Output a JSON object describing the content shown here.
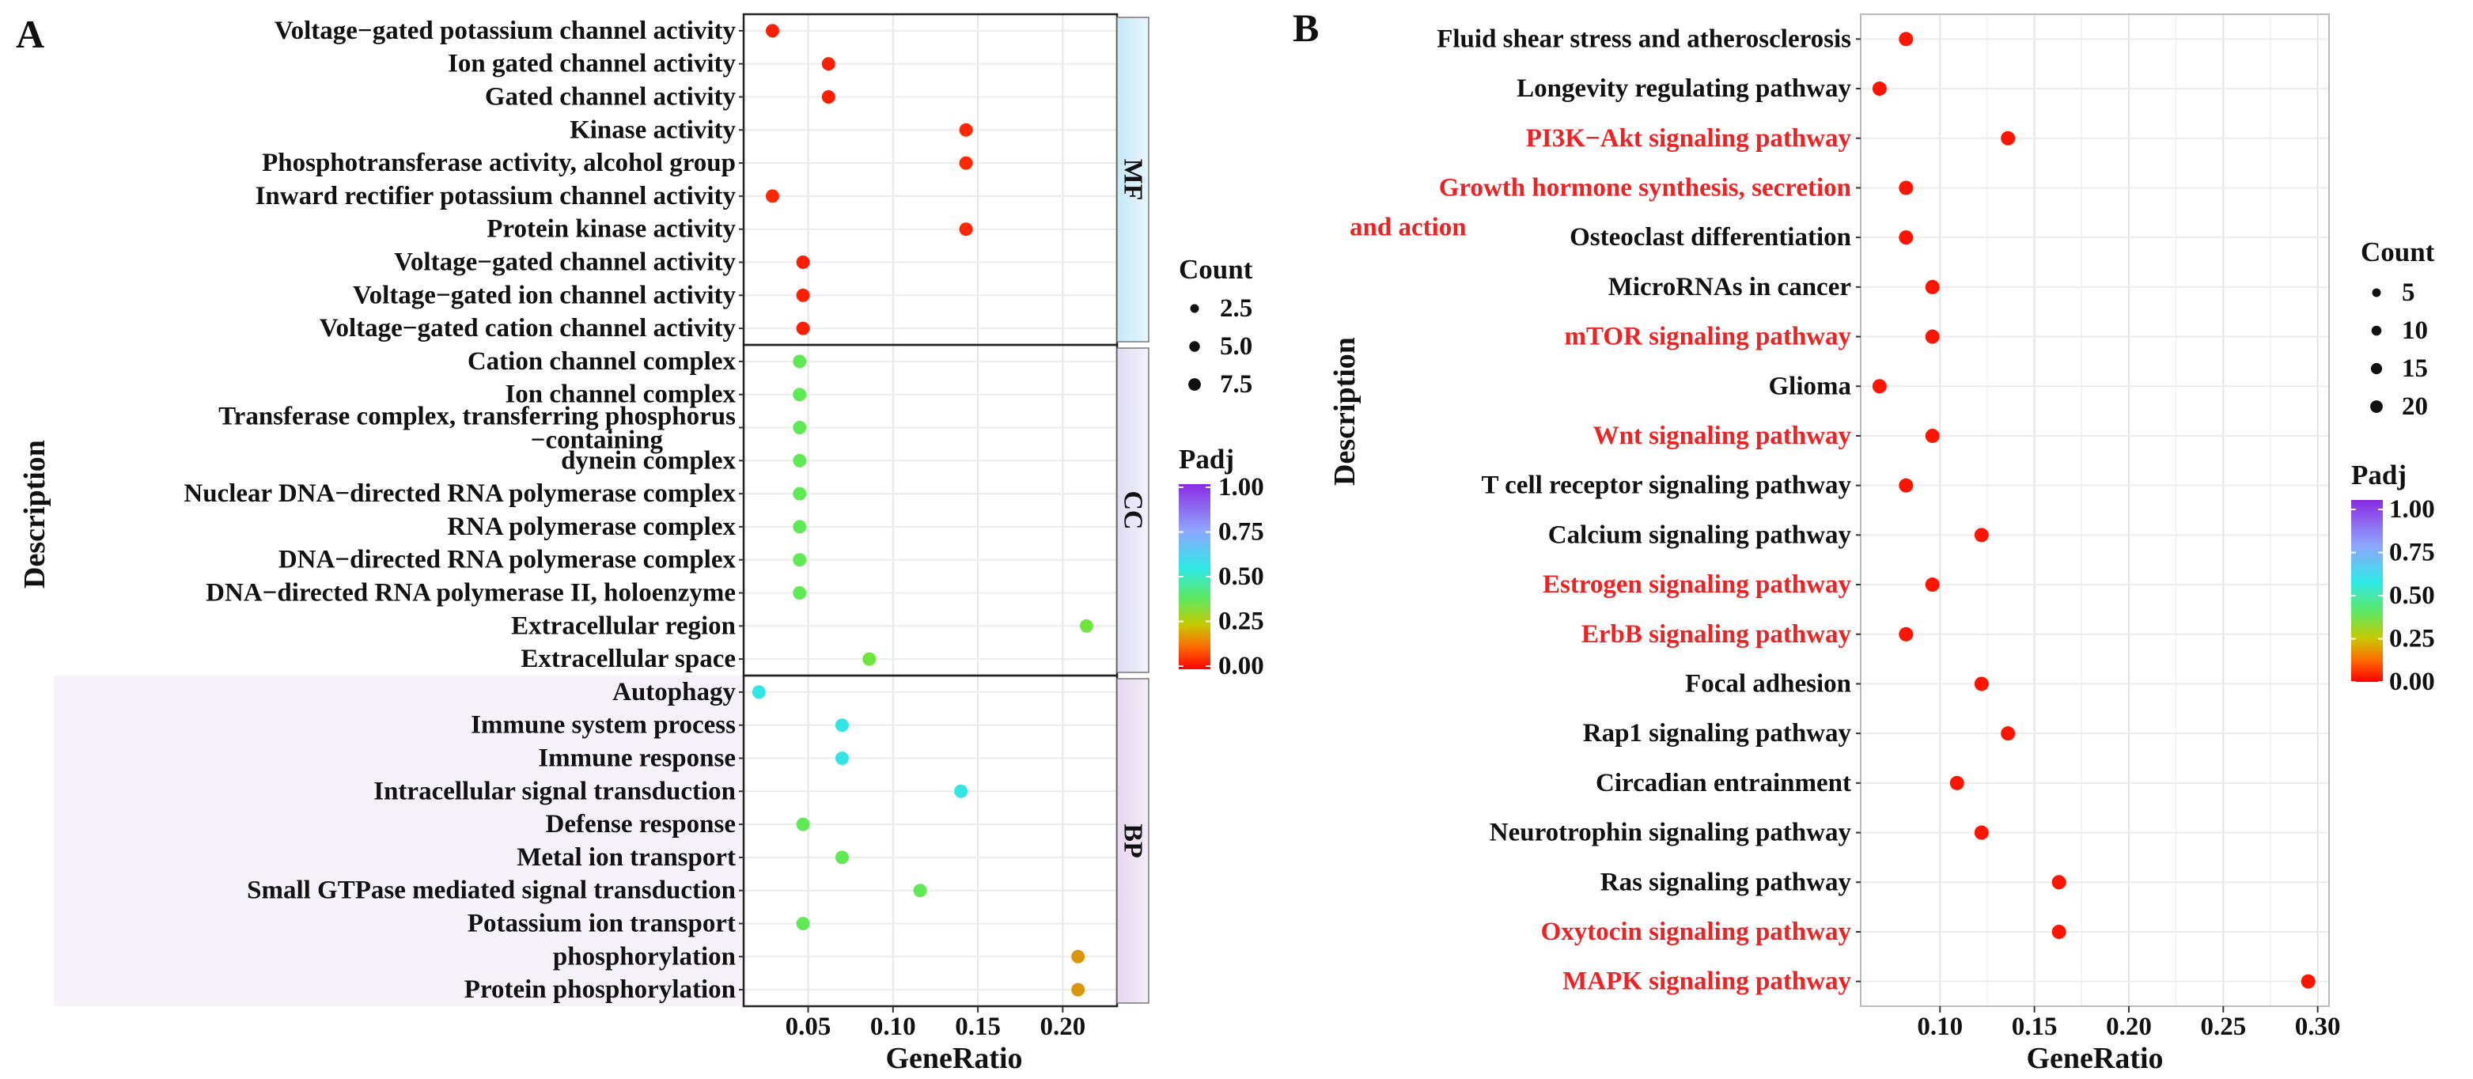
{
  "chart_data": [
    {
      "panel_label": "A",
      "type": "scatter",
      "xlabel": "GeneRatio",
      "ylabel": "Description",
      "xlim": [
        0.012,
        0.232
      ],
      "x_ticks": [
        0.05,
        0.1,
        0.15,
        0.2
      ],
      "x_tick_labels": [
        "0.05",
        "0.10",
        "0.15",
        "0.20"
      ],
      "grid": true,
      "legend_position": "right",
      "size_legend": {
        "title": "Count",
        "values": [
          2.5,
          5.0,
          7.5
        ],
        "labels": [
          "2.5",
          "5.0",
          "7.5"
        ]
      },
      "color_legend": {
        "title": "Padj",
        "range": [
          0,
          1
        ],
        "labels": [
          "1.00",
          "0.75",
          "0.50",
          "0.25",
          "0.00"
        ]
      },
      "facets": [
        {
          "label": "MF",
          "start": 0,
          "count": 10
        },
        {
          "label": "CC",
          "start": 10,
          "count": 10
        },
        {
          "label": "BP",
          "start": 20,
          "count": 10
        }
      ],
      "points": [
        {
          "label": "Voltage−gated potassium channel activity",
          "x": 0.029,
          "padj": 0.03
        },
        {
          "label": "Ion gated channel activity",
          "x": 0.062,
          "padj": 0.03
        },
        {
          "label": "Gated channel activity",
          "x": 0.062,
          "padj": 0.03
        },
        {
          "label": "Kinase activity",
          "x": 0.143,
          "padj": 0.04
        },
        {
          "label": "Phosphotransferase activity, alcohol group",
          "x": 0.143,
          "padj": 0.04
        },
        {
          "label": "Inward rectifier potassium channel activity",
          "x": 0.029,
          "padj": 0.04
        },
        {
          "label": "Protein kinase activity",
          "x": 0.143,
          "padj": 0.04
        },
        {
          "label": "Voltage−gated channel activity",
          "x": 0.047,
          "padj": 0.03
        },
        {
          "label": "Voltage−gated ion channel activity",
          "x": 0.047,
          "padj": 0.03
        },
        {
          "label": "Voltage−gated cation channel activity",
          "x": 0.047,
          "padj": 0.03
        },
        {
          "label": "Cation channel complex",
          "x": 0.045,
          "padj": 0.4
        },
        {
          "label": "Ion channel complex",
          "x": 0.045,
          "padj": 0.4
        },
        {
          "label": "Transferase complex, transferring phosphorus−containing",
          "x": 0.045,
          "padj": 0.4
        },
        {
          "label": "dynein complex",
          "x": 0.045,
          "padj": 0.4
        },
        {
          "label": "Nuclear DNA−directed RNA polymerase complex",
          "x": 0.045,
          "padj": 0.4
        },
        {
          "label": "RNA polymerase complex",
          "x": 0.045,
          "padj": 0.4
        },
        {
          "label": "DNA−directed RNA polymerase complex",
          "x": 0.045,
          "padj": 0.4
        },
        {
          "label": "DNA−directed RNA polymerase II, holoenzyme",
          "x": 0.045,
          "padj": 0.4
        },
        {
          "label": "Extracellular region",
          "x": 0.214,
          "padj": 0.35
        },
        {
          "label": "Extracellular space",
          "x": 0.086,
          "padj": 0.35
        },
        {
          "label": "Autophagy",
          "x": 0.021,
          "padj": 0.55
        },
        {
          "label": "Immune system process",
          "x": 0.07,
          "padj": 0.55
        },
        {
          "label": "Immune response",
          "x": 0.07,
          "padj": 0.55
        },
        {
          "label": "Intracellular signal transduction",
          "x": 0.14,
          "padj": 0.55
        },
        {
          "label": "Defense response",
          "x": 0.047,
          "padj": 0.4
        },
        {
          "label": "Metal ion transport",
          "x": 0.07,
          "padj": 0.4
        },
        {
          "label": "Small GTPase mediated signal transduction",
          "x": 0.116,
          "padj": 0.4
        },
        {
          "label": "Potassium ion transport",
          "x": 0.047,
          "padj": 0.4
        },
        {
          "label": "phosphorylation",
          "x": 0.209,
          "padj": 0.18
        },
        {
          "label": "Protein phosphorylation",
          "x": 0.209,
          "padj": 0.18
        }
      ]
    },
    {
      "panel_label": "B",
      "type": "scatter",
      "xlabel": "GeneRatio",
      "ylabel": "Description",
      "xlim": [
        0.058,
        0.306
      ],
      "x_ticks": [
        0.1,
        0.15,
        0.2,
        0.25,
        0.3
      ],
      "x_tick_labels": [
        "0.10",
        "0.15",
        "0.20",
        "0.25",
        "0.30"
      ],
      "grid": true,
      "legend_position": "right",
      "size_legend": {
        "title": "Count",
        "values": [
          5,
          10,
          15,
          20
        ],
        "labels": [
          "5",
          "10",
          "15",
          "20"
        ]
      },
      "color_legend": {
        "title": "Padj",
        "range": [
          0,
          1
        ],
        "labels": [
          "1.00",
          "0.75",
          "0.50",
          "0.25",
          "0.00"
        ]
      },
      "highlight_color": "#ee2222",
      "points": [
        {
          "label": "Fluid shear stress and atherosclerosis",
          "x": 0.082,
          "padj": 0.02,
          "highlight": false
        },
        {
          "label": "Longevity regulating pathway",
          "x": 0.068,
          "padj": 0.02,
          "highlight": false
        },
        {
          "label": "PI3K−Akt signaling pathway",
          "x": 0.136,
          "padj": 0.02,
          "highlight": true
        },
        {
          "label": "Growth hormone synthesis, secretion",
          "label2": "and action",
          "x": 0.082,
          "padj": 0.02,
          "highlight": true
        },
        {
          "label": "Osteoclast differentiation",
          "x": 0.082,
          "padj": 0.02,
          "highlight": false
        },
        {
          "label": "MicroRNAs in cancer",
          "x": 0.096,
          "padj": 0.02,
          "highlight": false
        },
        {
          "label": "mTOR signaling pathway",
          "x": 0.096,
          "padj": 0.02,
          "highlight": true
        },
        {
          "label": "Glioma",
          "x": 0.068,
          "padj": 0.02,
          "highlight": false
        },
        {
          "label": "Wnt signaling pathway",
          "x": 0.096,
          "padj": 0.02,
          "highlight": true
        },
        {
          "label": "T cell receptor signaling pathway",
          "x": 0.082,
          "padj": 0.02,
          "highlight": false
        },
        {
          "label": "Calcium signaling pathway",
          "x": 0.122,
          "padj": 0.02,
          "highlight": false
        },
        {
          "label": "Estrogen signaling pathway",
          "x": 0.096,
          "padj": 0.02,
          "highlight": true
        },
        {
          "label": "ErbB signaling pathway",
          "x": 0.082,
          "padj": 0.02,
          "highlight": true
        },
        {
          "label": "Focal adhesion",
          "x": 0.122,
          "padj": 0.02,
          "highlight": false
        },
        {
          "label": "Rap1 signaling pathway",
          "x": 0.136,
          "padj": 0.02,
          "highlight": false
        },
        {
          "label": "Circadian entrainment",
          "x": 0.109,
          "padj": 0.02,
          "highlight": false
        },
        {
          "label": "Neurotrophin signaling pathway",
          "x": 0.122,
          "padj": 0.02,
          "highlight": false
        },
        {
          "label": "Ras signaling pathway",
          "x": 0.163,
          "padj": 0.02,
          "highlight": false
        },
        {
          "label": "Oxytocin signaling pathway",
          "x": 0.163,
          "padj": 0.02,
          "highlight": true
        },
        {
          "label": "MAPK signaling pathway",
          "x": 0.295,
          "padj": 0.02,
          "highlight": true
        }
      ]
    }
  ]
}
